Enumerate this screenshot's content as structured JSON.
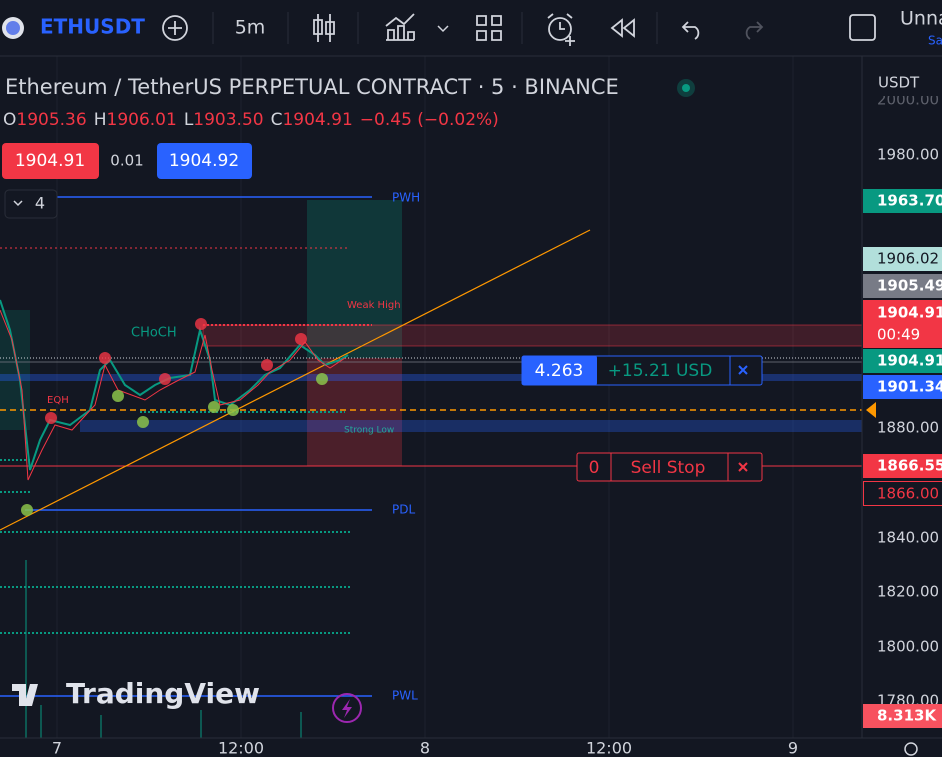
{
  "toolbar": {
    "symbol": "ETHUSDT",
    "interval": "5m",
    "layout_name": "Unna",
    "layout_sub": "Sa"
  },
  "header": {
    "title": "Ethereum / TetherUS PERPETUAL CONTRACT · 5 · BINANCE"
  },
  "ohlc": {
    "o_label": "O",
    "o": "1905.36",
    "h_label": "H",
    "h": "1906.01",
    "l_label": "L",
    "l": "1903.50",
    "c_label": "C",
    "c": "1904.91",
    "change": "−0.45 (−0.02%)"
  },
  "order_buttons": {
    "sell": "1904.91",
    "spread": "0.01",
    "buy": "1904.92"
  },
  "layers_count": "4",
  "price_axis": {
    "currency": "USDT",
    "ticks": [
      "2000.00",
      "1980.00",
      "1880.00",
      "1840.00",
      "1820.00",
      "1800.00",
      "1780.00"
    ],
    "tags": [
      "1963.70",
      "1906.02",
      "1905.49",
      "1904.91",
      "00:49",
      "1904.91",
      "1901.34",
      "1866.55",
      "1866.00",
      "8.313K"
    ]
  },
  "time_axis": {
    "labels": [
      "7",
      "12:00",
      "8",
      "12:00",
      "9"
    ]
  },
  "drawings": {
    "pwh": "PWH",
    "weak_high": "Weak High",
    "choch": "CHoCH",
    "eqh": "EQH",
    "strong_low": "Strong Low",
    "pdl": "PDL",
    "pwl": "PWL"
  },
  "position": {
    "quantity": "4.263",
    "pnl": "+15.21 USD"
  },
  "order": {
    "quantity": "0",
    "type": "Sell Stop"
  },
  "branding": "TradingView"
}
